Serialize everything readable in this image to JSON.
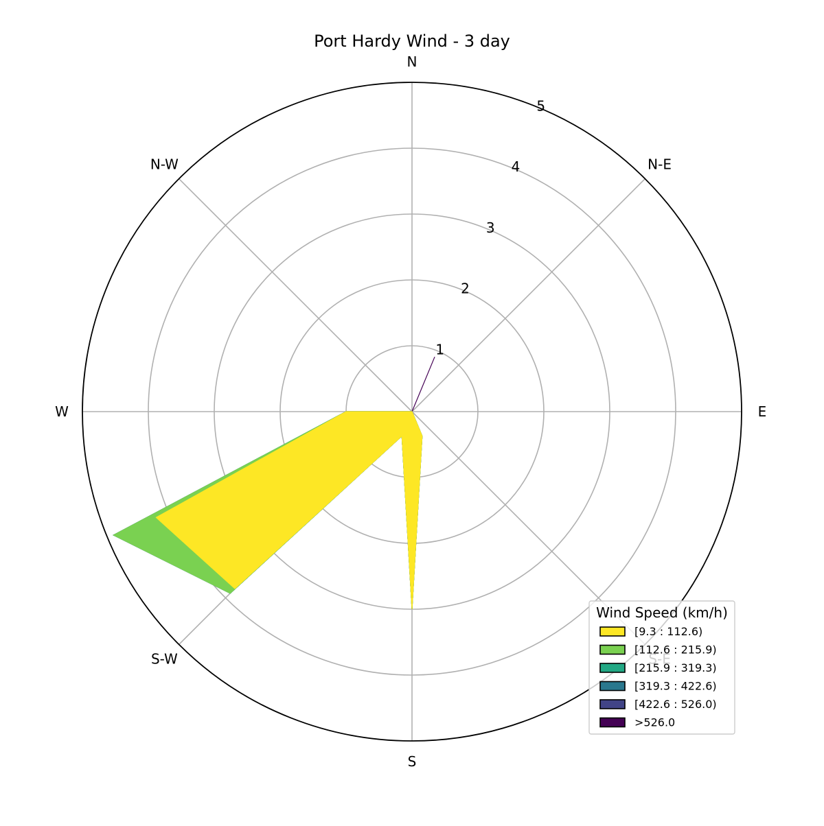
{
  "chart_data": {
    "type": "windrose",
    "title": "Port Hardy Wind - 3 day",
    "direction_labels": [
      "N",
      "N-E",
      "E",
      "S-E",
      "S",
      "S-W",
      "W",
      "N-W"
    ],
    "radial_ticks": [
      1,
      2,
      3,
      4,
      5
    ],
    "rmax": 5,
    "grid": true,
    "legend": {
      "title": "Wind Speed (km/h)",
      "placement": "lower-right"
    },
    "bins": [
      {
        "label": "[9.3 : 112.6)",
        "color": "#fde725"
      },
      {
        "label": "[112.6 : 215.9)",
        "color": "#7ad151"
      },
      {
        "label": "[215.9 : 319.3)",
        "color": "#22a884"
      },
      {
        "label": "[319.3 : 422.6)",
        "color": "#2a788e"
      },
      {
        "label": "[422.6 : 526.0)",
        "color": "#414487"
      },
      {
        "label": ">526.0",
        "color": "#440154"
      }
    ],
    "directions_deg": [
      0,
      22.5,
      45,
      67.5,
      90,
      112.5,
      135,
      157.5,
      180,
      202.5,
      225,
      247.5,
      270,
      292.5,
      315,
      337.5
    ],
    "cumulative_frequency": [
      {
        "bin": "[9.3 : 112.6)",
        "values": [
          0,
          0,
          0,
          0,
          0,
          0,
          0,
          0.4,
          3.0,
          0.4,
          3.8,
          4.2,
          1.0,
          0,
          0,
          0
        ]
      },
      {
        "bin": "[112.6 : 215.9)",
        "values": [
          0,
          0,
          0,
          0,
          0,
          0,
          0,
          0.4,
          3.0,
          0.4,
          3.9,
          4.9,
          1.0,
          0,
          0,
          0
        ]
      },
      {
        "bin": "[215.9 : 319.3)",
        "values": [
          0,
          0,
          0,
          0,
          0,
          0,
          0,
          0.4,
          3.0,
          0.4,
          3.9,
          4.9,
          1.0,
          0,
          0,
          0
        ]
      },
      {
        "bin": "[319.3 : 422.6)",
        "values": [
          0,
          0,
          0,
          0,
          0,
          0,
          0,
          0.4,
          3.0,
          0.4,
          3.9,
          4.9,
          1.0,
          0,
          0,
          0
        ]
      },
      {
        "bin": "[422.6 : 526.0)",
        "values": [
          0,
          0,
          0,
          0,
          0,
          0,
          0,
          0.4,
          3.0,
          0.4,
          3.9,
          4.9,
          1.0,
          0,
          0,
          0
        ]
      },
      {
        "bin": ">526.0",
        "values": [
          0,
          0.9,
          0,
          0,
          0,
          0,
          0,
          0.4,
          3.0,
          0.4,
          3.9,
          4.9,
          1.0,
          0,
          0,
          0
        ]
      }
    ]
  }
}
